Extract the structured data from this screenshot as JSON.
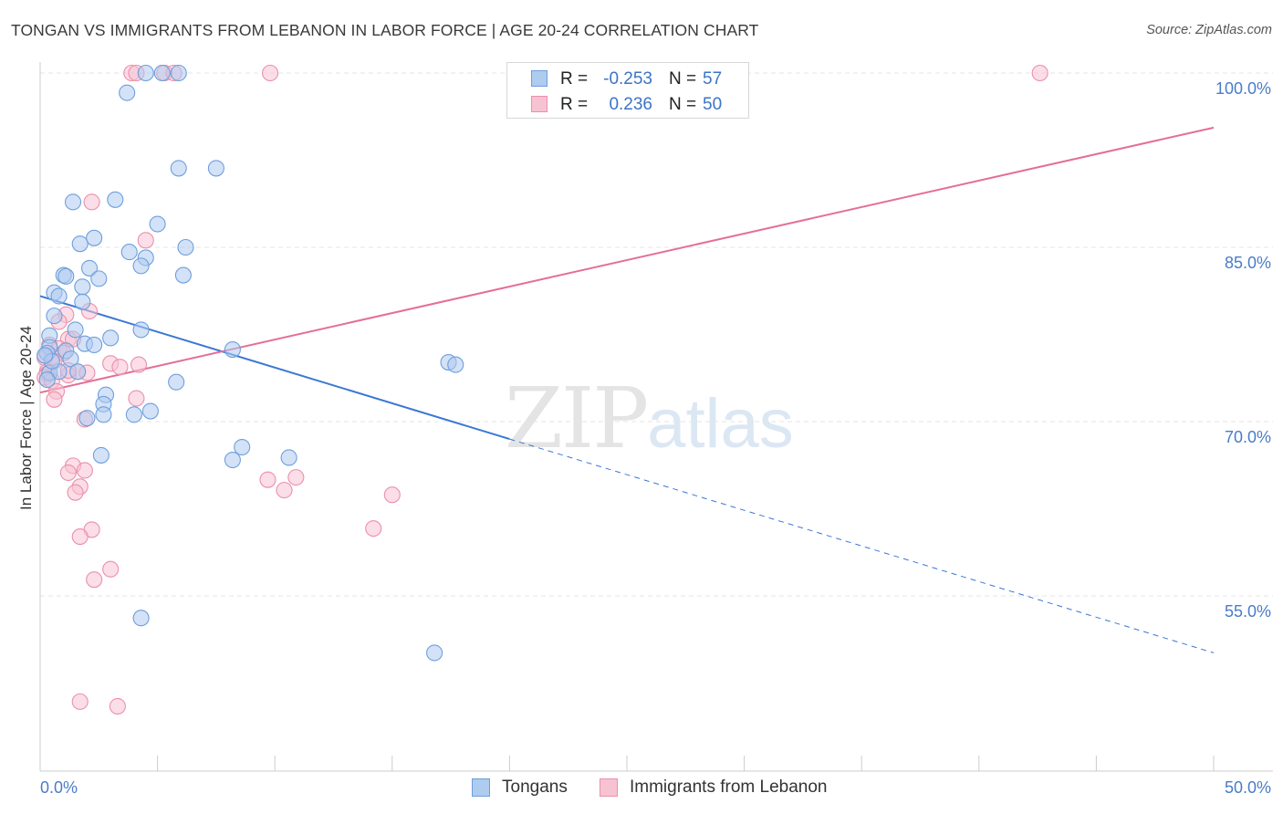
{
  "title": "TONGAN VS IMMIGRANTS FROM LEBANON IN LABOR FORCE | AGE 20-24 CORRELATION CHART",
  "source": "Source: ZipAtlas.com",
  "watermark": {
    "zip": "ZIP",
    "atlas": "atlas"
  },
  "legend": {
    "series1": {
      "r_label": "R =",
      "r_value": "-0.253",
      "n_label": "N =",
      "n_value": "57"
    },
    "series2": {
      "r_label": "R =",
      "r_value": "0.236",
      "n_label": "N =",
      "n_value": "50"
    }
  },
  "bottom_legend": {
    "series1": "Tongans",
    "series2": "Immigrants from Lebanon"
  },
  "colors": {
    "blue_fill": "#aecbf0",
    "blue_stroke": "#6e9fdc",
    "blue_line": "#3a78d4",
    "pink_fill": "#f7c3d3",
    "pink_stroke": "#ec8fab",
    "pink_line": "#e46f96",
    "grid": "#e6e6e6",
    "axis": "#cccccc",
    "tick_text": "#4a7cc8"
  },
  "chart_data": {
    "type": "scatter",
    "title": "TONGAN VS IMMIGRANTS FROM LEBANON IN LABOR FORCE | AGE 20-24 CORRELATION CHART",
    "xlabel": "",
    "ylabel": "In Labor Force | Age 20-24",
    "xlim": [
      0,
      50
    ],
    "ylim": [
      40,
      101
    ],
    "x_tick_labels": {
      "left": "0.0%",
      "right": "50.0%"
    },
    "y_ticks": [
      {
        "value": 100,
        "label": "100.0%"
      },
      {
        "value": 85,
        "label": "85.0%"
      },
      {
        "value": 70,
        "label": "70.0%"
      },
      {
        "value": 55,
        "label": "55.0%"
      }
    ],
    "series": [
      {
        "name": "Tongans",
        "r": -0.253,
        "n": 57,
        "trend": {
          "x_start": 0,
          "y_start": 80.8,
          "x_solid_end": 20,
          "y_solid_end": 68.5,
          "x_end": 50,
          "y_end": 50.1
        },
        "points": [
          [
            4.5,
            100
          ],
          [
            5.2,
            100
          ],
          [
            5.9,
            100
          ],
          [
            3.7,
            98.3
          ],
          [
            7.5,
            91.8
          ],
          [
            5.9,
            91.8
          ],
          [
            3.2,
            89.1
          ],
          [
            1.4,
            88.9
          ],
          [
            5.0,
            87.0
          ],
          [
            2.3,
            85.8
          ],
          [
            1.7,
            85.3
          ],
          [
            6.2,
            85.0
          ],
          [
            3.8,
            84.6
          ],
          [
            4.5,
            84.1
          ],
          [
            4.3,
            83.4
          ],
          [
            2.1,
            83.2
          ],
          [
            6.1,
            82.6
          ],
          [
            1.0,
            82.6
          ],
          [
            1.1,
            82.5
          ],
          [
            1.8,
            81.6
          ],
          [
            2.5,
            82.3
          ],
          [
            0.6,
            81.1
          ],
          [
            0.8,
            80.8
          ],
          [
            1.8,
            80.3
          ],
          [
            0.6,
            79.1
          ],
          [
            1.5,
            77.9
          ],
          [
            4.3,
            77.9
          ],
          [
            0.4,
            77.4
          ],
          [
            3.0,
            77.2
          ],
          [
            1.9,
            76.7
          ],
          [
            0.4,
            76.4
          ],
          [
            2.3,
            76.6
          ],
          [
            8.2,
            76.2
          ],
          [
            1.1,
            76.1
          ],
          [
            0.3,
            75.9
          ],
          [
            1.3,
            75.4
          ],
          [
            17.4,
            75.1
          ],
          [
            17.7,
            74.9
          ],
          [
            0.4,
            74.2
          ],
          [
            1.6,
            74.3
          ],
          [
            0.8,
            74.3
          ],
          [
            0.3,
            73.6
          ],
          [
            5.8,
            73.4
          ],
          [
            2.8,
            72.3
          ],
          [
            2.7,
            71.5
          ],
          [
            4.7,
            70.9
          ],
          [
            2.7,
            70.6
          ],
          [
            2.0,
            70.3
          ],
          [
            4.0,
            70.6
          ],
          [
            8.6,
            67.8
          ],
          [
            10.6,
            66.9
          ],
          [
            8.2,
            66.7
          ],
          [
            2.6,
            67.1
          ],
          [
            4.3,
            53.1
          ],
          [
            16.8,
            50.1
          ],
          [
            0.5,
            75.2
          ],
          [
            0.2,
            75.7
          ]
        ]
      },
      {
        "name": "Immigrants from Lebanon",
        "r": 0.236,
        "n": 50,
        "trend": {
          "x_start": 0,
          "y_start": 72.5,
          "x_end": 50,
          "y_end": 95.3
        },
        "points": [
          [
            3.9,
            100
          ],
          [
            4.1,
            100
          ],
          [
            5.3,
            100
          ],
          [
            5.7,
            100
          ],
          [
            9.8,
            100
          ],
          [
            42.6,
            100
          ],
          [
            2.2,
            88.9
          ],
          [
            4.5,
            85.6
          ],
          [
            2.1,
            79.5
          ],
          [
            1.1,
            79.2
          ],
          [
            0.8,
            78.6
          ],
          [
            1.2,
            77.1
          ],
          [
            1.4,
            77.1
          ],
          [
            0.4,
            76.6
          ],
          [
            0.8,
            76.3
          ],
          [
            1.0,
            75.9
          ],
          [
            0.5,
            75.6
          ],
          [
            0.2,
            75.5
          ],
          [
            0.6,
            75.2
          ],
          [
            3.0,
            75.0
          ],
          [
            4.2,
            74.9
          ],
          [
            3.4,
            74.7
          ],
          [
            0.3,
            74.3
          ],
          [
            1.6,
            74.3
          ],
          [
            0.3,
            74.1
          ],
          [
            2.0,
            74.2
          ],
          [
            1.2,
            74.0
          ],
          [
            0.2,
            73.8
          ],
          [
            0.5,
            73.5
          ],
          [
            0.7,
            72.6
          ],
          [
            0.6,
            71.9
          ],
          [
            4.1,
            72.0
          ],
          [
            1.9,
            70.2
          ],
          [
            1.4,
            66.2
          ],
          [
            1.9,
            65.8
          ],
          [
            1.2,
            65.6
          ],
          [
            9.7,
            65.0
          ],
          [
            10.9,
            65.2
          ],
          [
            10.4,
            64.1
          ],
          [
            1.7,
            64.4
          ],
          [
            1.5,
            63.9
          ],
          [
            15.0,
            63.7
          ],
          [
            14.2,
            60.8
          ],
          [
            2.2,
            60.7
          ],
          [
            1.7,
            60.1
          ],
          [
            3.0,
            57.3
          ],
          [
            2.3,
            56.4
          ],
          [
            1.7,
            45.9
          ],
          [
            3.3,
            45.5
          ],
          [
            1.2,
            74.4
          ]
        ]
      }
    ]
  }
}
